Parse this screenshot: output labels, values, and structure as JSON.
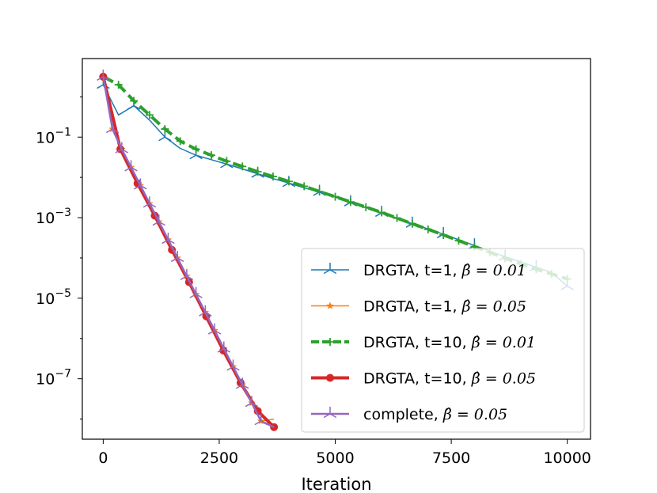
{
  "chart_data": {
    "type": "line",
    "xlabel": "Iteration",
    "ylabel": "",
    "xlim": [
      -450,
      10500
    ],
    "ylim_log10": [
      -8.5,
      0.95
    ],
    "yscale": "log",
    "grid": false,
    "legend_position": "lower-right",
    "x_ticks": [
      0,
      2500,
      5000,
      7500,
      10000
    ],
    "x_tick_labels": [
      "0",
      "2500",
      "5000",
      "7500",
      "10000"
    ],
    "y_ticks_exp": [
      -1,
      -3,
      -5,
      -7
    ],
    "y_tick_bases": [
      "10",
      "10",
      "10",
      "10"
    ],
    "y_tick_exps": [
      "−1",
      "−3",
      "−5",
      "−7"
    ],
    "series": [
      {
        "name_main": "DRGTA, t=1, ",
        "name_math": "β̂ = 0.01",
        "color": "#1f77b4",
        "marker": "tri",
        "linewidth": 1.5,
        "dash": "",
        "points": [
          [
            0,
            0.3
          ],
          [
            330,
            -0.45
          ],
          [
            660,
            -0.22
          ],
          [
            1000,
            -0.58
          ],
          [
            1330,
            -1.0
          ],
          [
            1660,
            -1.28
          ],
          [
            2000,
            -1.45
          ],
          [
            2330,
            -1.56
          ],
          [
            2660,
            -1.67
          ],
          [
            3000,
            -1.79
          ],
          [
            3330,
            -1.91
          ],
          [
            3660,
            -2.03
          ],
          [
            4000,
            -2.14
          ],
          [
            4330,
            -2.26
          ],
          [
            4660,
            -2.36
          ],
          [
            5000,
            -2.49
          ],
          [
            5330,
            -2.62
          ],
          [
            5660,
            -2.75
          ],
          [
            6000,
            -2.88
          ],
          [
            6330,
            -3.01
          ],
          [
            6660,
            -3.15
          ],
          [
            7000,
            -3.28
          ],
          [
            7330,
            -3.41
          ],
          [
            7660,
            -3.55
          ],
          [
            8000,
            -3.69
          ],
          [
            8330,
            -3.83
          ],
          [
            8660,
            -3.97
          ],
          [
            9000,
            -4.1
          ],
          [
            9330,
            -4.23
          ],
          [
            9660,
            -4.36
          ],
          [
            10000,
            -4.7
          ]
        ],
        "marker_x": [
          0,
          660,
          1330,
          2000,
          2660,
          3330,
          4000,
          4660,
          5330,
          6000,
          6660,
          7330,
          8000,
          8660,
          9330,
          10000
        ]
      },
      {
        "name_main": "DRGTA, t=1, ",
        "name_math": "β̂ = 0.05",
        "color": "#ff7f0e",
        "marker": "star",
        "linewidth": 1.5,
        "dash": "",
        "points": [
          [
            0,
            0.5
          ],
          [
            200,
            -0.8
          ],
          [
            400,
            -1.3
          ],
          [
            600,
            -1.75
          ],
          [
            800,
            -2.2
          ],
          [
            1000,
            -2.65
          ],
          [
            1200,
            -3.1
          ],
          [
            1400,
            -3.55
          ],
          [
            1600,
            -4.0
          ],
          [
            1800,
            -4.45
          ],
          [
            2000,
            -4.9
          ],
          [
            2200,
            -5.35
          ],
          [
            2400,
            -5.8
          ],
          [
            2600,
            -6.25
          ],
          [
            2800,
            -6.7
          ],
          [
            3000,
            -7.15
          ],
          [
            3200,
            -7.6
          ],
          [
            3400,
            -8.05
          ],
          [
            3680,
            -8.0
          ]
        ],
        "marker_x": [
          0,
          200,
          400,
          600,
          800,
          1000,
          1200,
          1400,
          1600,
          1800,
          2000,
          2200,
          2400,
          2600,
          2800,
          3000,
          3200,
          3400
        ]
      },
      {
        "name_main": "DRGTA, t=10, ",
        "name_math": "β̂ = 0.01",
        "color": "#2ca02c",
        "marker": "plus",
        "linewidth": 4,
        "dash": "14,6",
        "points": [
          [
            0,
            0.5
          ],
          [
            330,
            0.3
          ],
          [
            660,
            -0.1
          ],
          [
            1000,
            -0.45
          ],
          [
            1330,
            -0.8
          ],
          [
            1660,
            -1.1
          ],
          [
            2000,
            -1.3
          ],
          [
            2330,
            -1.45
          ],
          [
            2660,
            -1.6
          ],
          [
            3000,
            -1.73
          ],
          [
            3330,
            -1.86
          ],
          [
            3660,
            -1.98
          ],
          [
            4000,
            -2.1
          ],
          [
            4330,
            -2.22
          ],
          [
            4660,
            -2.35
          ],
          [
            5000,
            -2.48
          ],
          [
            5330,
            -2.61
          ],
          [
            5660,
            -2.74
          ],
          [
            6000,
            -2.87
          ],
          [
            6330,
            -3.01
          ],
          [
            6660,
            -3.15
          ],
          [
            7000,
            -3.29
          ],
          [
            7330,
            -3.43
          ],
          [
            7660,
            -3.57
          ],
          [
            8000,
            -3.72
          ],
          [
            8330,
            -3.86
          ],
          [
            8660,
            -4.01
          ],
          [
            9000,
            -4.15
          ],
          [
            9330,
            -4.28
          ],
          [
            9660,
            -4.4
          ],
          [
            10000,
            -4.52
          ]
        ],
        "marker_x": [
          0,
          330,
          660,
          1000,
          1330,
          1660,
          2000,
          2330,
          2660,
          3000,
          3330,
          3660,
          4000,
          4330,
          4660,
          5000,
          5330,
          5660,
          6000,
          6330,
          6660,
          7000,
          7330,
          7660,
          8000,
          8330,
          8660,
          9000,
          9330,
          9660,
          10000
        ]
      },
      {
        "name_main": "DRGTA, t=10, ",
        "name_math": "β̂ = 0.05",
        "color": "#d62728",
        "marker": "circle",
        "linewidth": 4,
        "dash": "",
        "points": [
          [
            0,
            0.5
          ],
          [
            370,
            -1.3
          ],
          [
            740,
            -2.15
          ],
          [
            1110,
            -2.95
          ],
          [
            1480,
            -3.8
          ],
          [
            1850,
            -4.6
          ],
          [
            2220,
            -5.45
          ],
          [
            2590,
            -6.3
          ],
          [
            2960,
            -7.1
          ],
          [
            3330,
            -7.8
          ],
          [
            3680,
            -8.2
          ]
        ],
        "marker_x": [
          0,
          370,
          740,
          1110,
          1480,
          1850,
          2220,
          2590,
          2960,
          3330,
          3680
        ]
      },
      {
        "name_main": "complete, ",
        "name_math": "β̂ = 0.05",
        "color": "#9467bd",
        "marker": "tri",
        "linewidth": 2.5,
        "dash": "",
        "points": [
          [
            0,
            0.5
          ],
          [
            200,
            -0.8
          ],
          [
            400,
            -1.3
          ],
          [
            600,
            -1.75
          ],
          [
            800,
            -2.2
          ],
          [
            1000,
            -2.65
          ],
          [
            1200,
            -3.1
          ],
          [
            1400,
            -3.55
          ],
          [
            1600,
            -4.0
          ],
          [
            1800,
            -4.45
          ],
          [
            2000,
            -4.9
          ],
          [
            2200,
            -5.35
          ],
          [
            2400,
            -5.8
          ],
          [
            2600,
            -6.25
          ],
          [
            2800,
            -6.7
          ],
          [
            3000,
            -7.15
          ],
          [
            3200,
            -7.6
          ],
          [
            3400,
            -8.05
          ],
          [
            3680,
            -8.2
          ]
        ],
        "marker_x": [
          0,
          200,
          400,
          600,
          800,
          1000,
          1200,
          1400,
          1600,
          1800,
          2000,
          2200,
          2400,
          2600,
          2800,
          3000,
          3200,
          3400
        ]
      }
    ]
  }
}
